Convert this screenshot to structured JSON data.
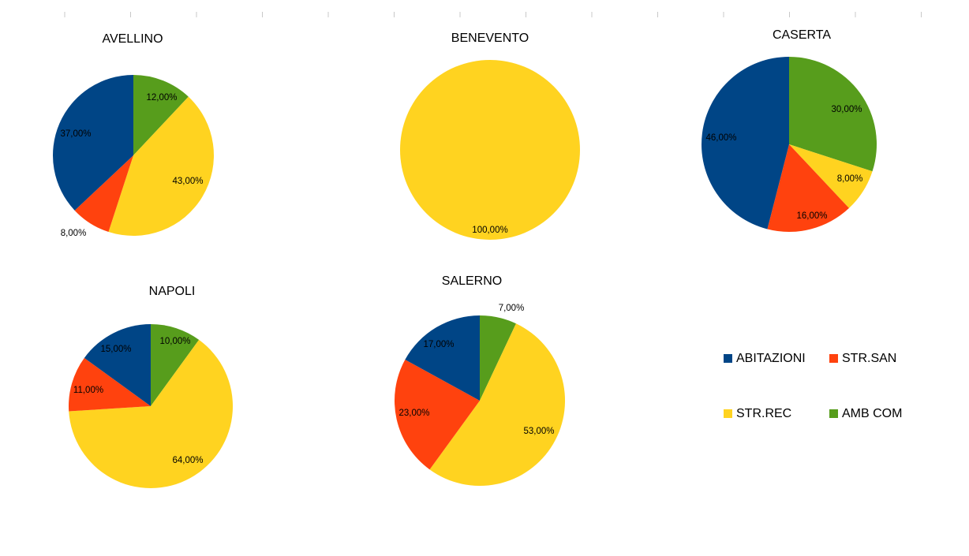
{
  "colors": {
    "ABITAZIONI": "#004586",
    "STR.SAN": "#ff420e",
    "STR.REC": "#ffd320",
    "AMB COM": "#579d1c"
  },
  "chart_data": [
    {
      "type": "pie",
      "title": "AVELLINO",
      "slices": [
        {
          "category": "AMB COM",
          "value": 12,
          "label": "12,00%"
        },
        {
          "category": "STR.REC",
          "value": 43,
          "label": "43,00%"
        },
        {
          "category": "STR.SAN",
          "value": 8,
          "label": "8,00%"
        },
        {
          "category": "ABITAZIONI",
          "value": 37,
          "label": "37,00%"
        }
      ]
    },
    {
      "type": "pie",
      "title": "BENEVENTO",
      "slices": [
        {
          "category": "STR.REC",
          "value": 100,
          "label": "100,00%"
        }
      ]
    },
    {
      "type": "pie",
      "title": "CASERTA",
      "slices": [
        {
          "category": "AMB COM",
          "value": 30,
          "label": "30,00%"
        },
        {
          "category": "STR.REC",
          "value": 8,
          "label": "8,00%"
        },
        {
          "category": "STR.SAN",
          "value": 16,
          "label": "16,00%"
        },
        {
          "category": "ABITAZIONI",
          "value": 46,
          "label": "46,00%"
        }
      ]
    },
    {
      "type": "pie",
      "title": "NAPOLI",
      "slices": [
        {
          "category": "AMB COM",
          "value": 10,
          "label": "10,00%"
        },
        {
          "category": "STR.REC",
          "value": 64,
          "label": "64,00%"
        },
        {
          "category": "STR.SAN",
          "value": 11,
          "label": "11,00%"
        },
        {
          "category": "ABITAZIONI",
          "value": 15,
          "label": "15,00%"
        }
      ]
    },
    {
      "type": "pie",
      "title": "SALERNO",
      "slices": [
        {
          "category": "AMB COM",
          "value": 7,
          "label": "7,00%"
        },
        {
          "category": "STR.REC",
          "value": 53,
          "label": "53,00%"
        },
        {
          "category": "STR.SAN",
          "value": 23,
          "label": "23,00%"
        },
        {
          "category": "ABITAZIONI",
          "value": 17,
          "label": "17,00%"
        }
      ]
    }
  ],
  "legend": {
    "placement": "right",
    "items": [
      "ABITAZIONI",
      "STR.SAN",
      "STR.REC",
      "AMB COM"
    ]
  }
}
